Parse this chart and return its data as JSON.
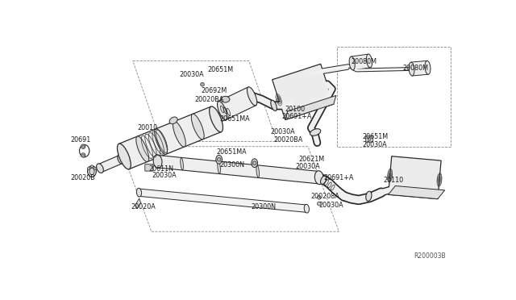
{
  "bg_color": "#ffffff",
  "line_color": "#2a2a2a",
  "label_color": "#1a1a1a",
  "label_fontsize": 5.8,
  "ref_code": "R200003B",
  "dashed_boxes": [
    {
      "pts_x": [
        108,
        295,
        340,
        153,
        108
      ],
      "pts_y": [
        40,
        40,
        170,
        170,
        40
      ]
    },
    {
      "pts_x": [
        88,
        390,
        440,
        138,
        88
      ],
      "pts_y": [
        178,
        178,
        315,
        315,
        178
      ]
    },
    {
      "pts_x": [
        437,
        620,
        620,
        437,
        437
      ],
      "pts_y": [
        18,
        18,
        178,
        178,
        18
      ]
    }
  ],
  "labels": [
    [
      "20691",
      8,
      168
    ],
    [
      "20020B",
      8,
      228
    ],
    [
      "20611N",
      133,
      214
    ],
    [
      "20030A",
      139,
      225
    ],
    [
      "20010",
      115,
      148
    ],
    [
      "20030A",
      183,
      62
    ],
    [
      "20651M",
      228,
      55
    ],
    [
      "20692M",
      218,
      88
    ],
    [
      "20020BA",
      208,
      103
    ],
    [
      "20651MA",
      248,
      133
    ],
    [
      "20651MA",
      243,
      187
    ],
    [
      "20300N",
      248,
      208
    ],
    [
      "20300N",
      298,
      275
    ],
    [
      "20020A",
      105,
      275
    ],
    [
      "20100",
      353,
      118
    ],
    [
      "20691+A",
      348,
      130
    ],
    [
      "20030A",
      330,
      155
    ],
    [
      "20020BA",
      335,
      168
    ],
    [
      "20621M",
      375,
      198
    ],
    [
      "20030A",
      370,
      210
    ],
    [
      "20691+A",
      415,
      228
    ],
    [
      "200208A",
      395,
      258
    ],
    [
      "20030A",
      408,
      272
    ],
    [
      "20110",
      512,
      232
    ],
    [
      "20651M",
      478,
      162
    ],
    [
      "20030A",
      478,
      175
    ],
    [
      "20080M",
      460,
      42
    ],
    [
      "20080M",
      542,
      52
    ]
  ]
}
